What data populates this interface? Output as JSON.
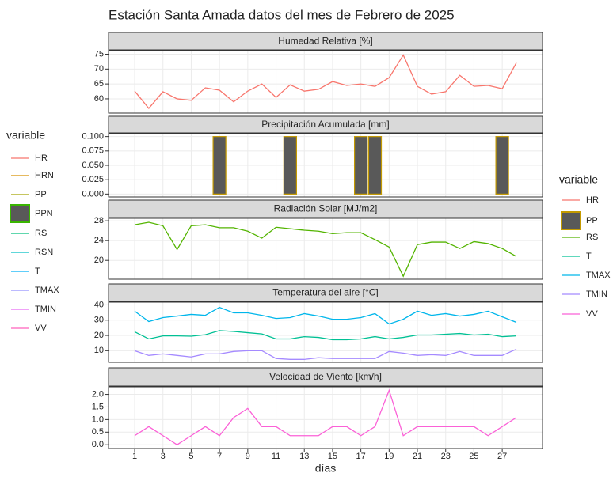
{
  "title": "Estación Santa Amada datos del mes de Febrero de 2025",
  "xlabel": "días",
  "legend_left": {
    "title": "variable",
    "items": [
      {
        "name": "HR",
        "color": "#F8766D",
        "shape": "line"
      },
      {
        "name": "HRN",
        "color": "#D89000",
        "shape": "line"
      },
      {
        "name": "PP",
        "color": "#A3A500",
        "shape": "line"
      },
      {
        "name": "PPN",
        "color": "#39B600",
        "shape": "bar"
      },
      {
        "name": "RS",
        "color": "#00BF7D",
        "shape": "line"
      },
      {
        "name": "RSN",
        "color": "#00BFC4",
        "shape": "line"
      },
      {
        "name": "T",
        "color": "#00B0F6",
        "shape": "line"
      },
      {
        "name": "TMAX",
        "color": "#9590FF",
        "shape": "line"
      },
      {
        "name": "TMIN",
        "color": "#E76BF3",
        "shape": "line"
      },
      {
        "name": "VV",
        "color": "#FF62BC",
        "shape": "line"
      }
    ]
  },
  "legend_right": {
    "title": "variable",
    "items": [
      {
        "name": "HR",
        "color": "#F8766D",
        "shape": "line"
      },
      {
        "name": "PP",
        "color": "#C49A00",
        "shape": "bar"
      },
      {
        "name": "RS",
        "color": "#53B400",
        "shape": "line"
      },
      {
        "name": "T",
        "color": "#00C094",
        "shape": "line"
      },
      {
        "name": "TMAX",
        "color": "#00B6EB",
        "shape": "line"
      },
      {
        "name": "TMIN",
        "color": "#A58AFF",
        "shape": "line"
      },
      {
        "name": "VV",
        "color": "#FB61D7",
        "shape": "line"
      }
    ]
  },
  "chart_data": [
    {
      "type": "line",
      "title": "Humedad Relativa [%]",
      "x": [
        1,
        2,
        3,
        4,
        5,
        6,
        7,
        8,
        9,
        10,
        11,
        12,
        13,
        14,
        15,
        16,
        17,
        18,
        19,
        20,
        21,
        22,
        23,
        24,
        25,
        26,
        27,
        28
      ],
      "xlim": [
        -0.85,
        29.85
      ],
      "xticks": [
        1,
        3,
        5,
        7,
        9,
        11,
        13,
        15,
        17,
        19,
        21,
        23,
        25,
        27
      ],
      "ylim": [
        55.2,
        76.2
      ],
      "yticks": [
        60,
        65,
        70,
        75
      ],
      "grid": true,
      "series": [
        {
          "name": "HR",
          "color": "#F8766D",
          "values": [
            62.6,
            56.8,
            62.4,
            60,
            59.5,
            63.7,
            62.9,
            59,
            62.6,
            65,
            60.5,
            64.7,
            62.6,
            63.2,
            65.8,
            64.5,
            65,
            64.2,
            67.1,
            74.7,
            64.2,
            61.6,
            62.4,
            67.9,
            64.2,
            64.5,
            63.4,
            72.1
          ]
        }
      ]
    },
    {
      "type": "bar",
      "title": "Precipitación Acumulada [mm]",
      "x": [
        1,
        2,
        3,
        4,
        5,
        6,
        7,
        8,
        9,
        10,
        11,
        12,
        13,
        14,
        15,
        16,
        17,
        18,
        19,
        20,
        21,
        22,
        23,
        24,
        25,
        26,
        27,
        28
      ],
      "xlim": [
        -0.85,
        29.85
      ],
      "xticks": [
        1,
        3,
        5,
        7,
        9,
        11,
        13,
        15,
        17,
        19,
        21,
        23,
        25,
        27
      ],
      "ylim": [
        -0.005,
        0.105
      ],
      "yticks": [
        {
          "value": 0,
          "label": "0.000"
        },
        {
          "value": 0.025,
          "label": "0.025"
        },
        {
          "value": 0.05,
          "label": "0.050"
        },
        {
          "value": 0.075,
          "label": "0.075"
        },
        {
          "value": 0.1,
          "label": "0.100"
        }
      ],
      "grid": true,
      "series": [
        {
          "name": "PP",
          "color": "#C49A00",
          "fill": "#595959",
          "values": [
            0,
            0,
            0,
            0,
            0,
            0,
            0.1,
            0,
            0,
            0,
            0,
            0.1,
            0,
            0,
            0,
            0,
            0.1,
            0.1,
            0,
            0,
            0,
            0,
            0,
            0,
            0,
            0,
            0.1,
            0
          ]
        }
      ]
    },
    {
      "type": "line",
      "title": "Radiación Solar [MJ/m2]",
      "x": [
        1,
        2,
        3,
        4,
        5,
        6,
        7,
        8,
        9,
        10,
        11,
        12,
        13,
        14,
        15,
        16,
        17,
        18,
        19,
        20,
        21,
        22,
        23,
        24,
        25,
        26,
        27,
        28
      ],
      "xlim": [
        -0.85,
        29.85
      ],
      "xticks": [
        1,
        3,
        5,
        7,
        9,
        11,
        13,
        15,
        17,
        19,
        21,
        23,
        25,
        27
      ],
      "ylim": [
        16.2,
        28.5
      ],
      "yticks": [
        20,
        24,
        28
      ],
      "grid": true,
      "series": [
        {
          "name": "RS",
          "color": "#53B400",
          "values": [
            27.2,
            27.7,
            27.0,
            22.2,
            27.0,
            27.2,
            26.6,
            26.6,
            25.9,
            24.5,
            26.7,
            26.4,
            26.1,
            25.9,
            25.4,
            25.6,
            25.6,
            24.2,
            22.7,
            16.8,
            23.2,
            23.7,
            23.7,
            22.4,
            23.8,
            23.4,
            22.4,
            20.8
          ]
        }
      ]
    },
    {
      "type": "line",
      "title": "Temperatura del aire [°C]",
      "x": [
        1,
        2,
        3,
        4,
        5,
        6,
        7,
        8,
        9,
        10,
        11,
        12,
        13,
        14,
        15,
        16,
        17,
        18,
        19,
        20,
        21,
        22,
        23,
        24,
        25,
        26,
        27,
        28
      ],
      "xlim": [
        -0.85,
        29.85
      ],
      "xticks": [
        1,
        3,
        5,
        7,
        9,
        11,
        13,
        15,
        17,
        19,
        21,
        23,
        25,
        27
      ],
      "ylim": [
        2.4,
        41.8
      ],
      "yticks": [
        10,
        20,
        30,
        40
      ],
      "grid": true,
      "series": [
        {
          "name": "T",
          "color": "#00C094",
          "values": [
            22.4,
            17.7,
            19.7,
            19.7,
            19.5,
            20.5,
            23.2,
            22.6,
            21.8,
            21.0,
            17.7,
            17.7,
            19.2,
            18.7,
            17.2,
            17.2,
            17.7,
            19.2,
            17.7,
            18.7,
            20.3,
            20.3,
            20.8,
            21.3,
            20.3,
            20.8,
            19.2,
            19.7
          ]
        },
        {
          "name": "TMAX",
          "color": "#00B6EB",
          "values": [
            35.9,
            29.1,
            31.7,
            32.7,
            33.8,
            33.2,
            38.4,
            34.8,
            34.8,
            33.2,
            31.1,
            31.7,
            34.3,
            32.7,
            30.6,
            30.6,
            31.7,
            34.3,
            27.5,
            30.6,
            35.9,
            33.2,
            34.3,
            32.7,
            33.8,
            35.9,
            32.2,
            28.6
          ]
        },
        {
          "name": "TMIN",
          "color": "#A58AFF",
          "values": [
            10,
            6.9,
            7.9,
            6.9,
            5.9,
            7.9,
            7.9,
            9.5,
            10,
            10,
            4.9,
            4.3,
            4.3,
            5.4,
            4.9,
            4.9,
            4.9,
            4.9,
            9.5,
            8.4,
            6.9,
            7.4,
            6.9,
            9.5,
            6.9,
            6.9,
            6.9,
            11
          ]
        }
      ]
    },
    {
      "type": "line",
      "title": "Velocidad de Viento [km/h]",
      "x": [
        1,
        2,
        3,
        4,
        5,
        6,
        7,
        8,
        9,
        10,
        11,
        12,
        13,
        14,
        15,
        16,
        17,
        18,
        19,
        20,
        21,
        22,
        23,
        24,
        25,
        26,
        27,
        28
      ],
      "xlim": [
        -0.85,
        29.85
      ],
      "xticks": [
        1,
        3,
        5,
        7,
        9,
        11,
        13,
        15,
        17,
        19,
        21,
        23,
        25,
        27
      ],
      "ylim": [
        -0.15,
        2.3
      ],
      "yticks": [
        {
          "value": 0,
          "label": "0.0"
        },
        {
          "value": 0.5,
          "label": "0.5"
        },
        {
          "value": 1,
          "label": "1.0"
        },
        {
          "value": 1.5,
          "label": "1.5"
        },
        {
          "value": 2,
          "label": "2.0"
        }
      ],
      "grid": true,
      "series": [
        {
          "name": "VV",
          "color": "#FB61D7",
          "values": [
            0.36,
            0.72,
            0.36,
            0,
            0.36,
            0.72,
            0.36,
            1.08,
            1.44,
            0.72,
            0.72,
            0.36,
            0.36,
            0.36,
            0.72,
            0.72,
            0.36,
            0.72,
            2.16,
            0.36,
            0.72,
            0.72,
            0.72,
            0.72,
            0.72,
            0.36,
            0.72,
            1.08
          ]
        }
      ]
    }
  ]
}
